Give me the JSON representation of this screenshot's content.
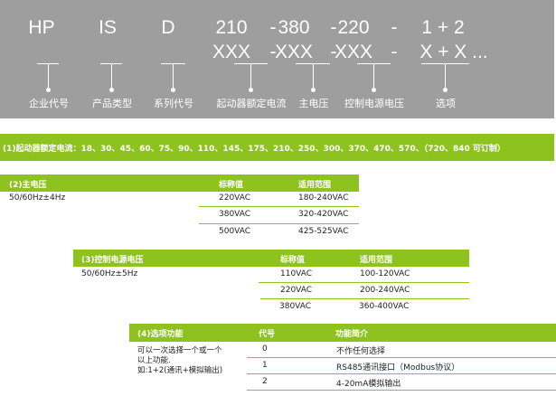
{
  "banner": {
    "codes_row1": [
      "HP",
      "IS",
      "D",
      "210",
      "-",
      "380",
      "-",
      "220",
      "-",
      "1 + 2"
    ],
    "codes_row2": [
      "XXX",
      "-",
      "XXX",
      "-",
      "XXX",
      "-",
      "X + X ..."
    ],
    "labels": [
      "企业代号",
      "产品类型",
      "系列代号",
      "起动器额定电流",
      "主电压",
      "控制电源电压",
      "选项"
    ]
  },
  "section1": {
    "text": "(1)起动器额定电流：18、30、45、60、75、90、110、145、175、210、250、300、370、470、570、（720、840 可订制）"
  },
  "section2": {
    "title": "(2)主电压",
    "col1": "标称值",
    "col2": "适用范围",
    "note": "50/60Hz±4Hz",
    "rows": [
      [
        "220VAC",
        "180-240VAC"
      ],
      [
        "380VAC",
        "320-420VAC"
      ],
      [
        "500VAC",
        "425-525VAC"
      ]
    ]
  },
  "section3": {
    "title": "(3)控制电源电压",
    "col1": "标称值",
    "col2": "适用范围",
    "note": "50/60Hz±5Hz",
    "rows": [
      [
        "110VAC",
        "100-120VAC"
      ],
      [
        "220VAC",
        "200-240VAC"
      ],
      [
        "380VAC",
        "360-400VAC"
      ]
    ]
  },
  "section4": {
    "title": "(4)选项功能",
    "col1": "代号",
    "col2": "功能简介",
    "note": [
      "可以一次选择一个或一个",
      "以上功能.",
      "如:1+2(通讯+模拟输出)"
    ],
    "rows": [
      [
        "0",
        "不作任何选择"
      ],
      [
        "1",
        "RS485通讯接口（Modbus协议）"
      ],
      [
        "2",
        "4-20mA模拟输出"
      ]
    ]
  },
  "colors": {
    "green": "#8dc21f",
    "gray": "#9d9e9d"
  }
}
